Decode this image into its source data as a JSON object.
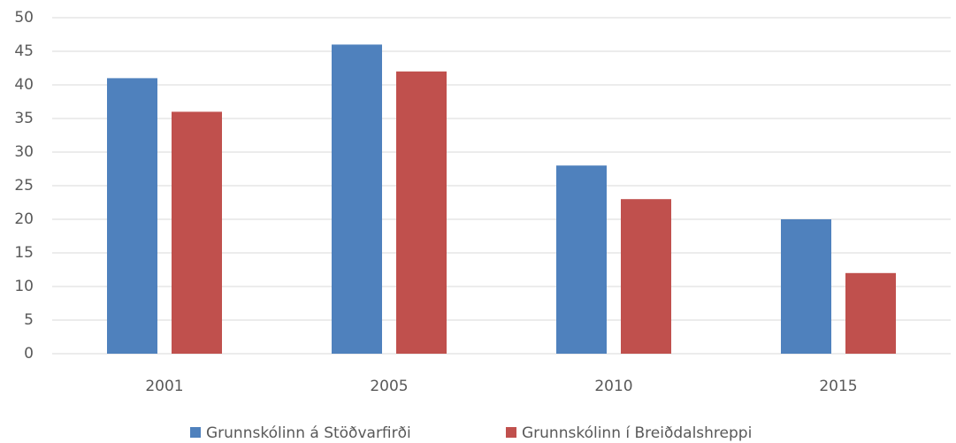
{
  "chart_data": {
    "type": "bar",
    "categories": [
      "2001",
      "2005",
      "2010",
      "2015"
    ],
    "series": [
      {
        "name": "Grunnskólinn á Stöðvarfirði",
        "color": "#4f81bd",
        "values": [
          41,
          46,
          28,
          20
        ]
      },
      {
        "name": "Grunnskólinn í Breiðdalshreppi",
        "color": "#c0504d",
        "values": [
          36,
          42,
          23,
          12
        ]
      }
    ],
    "ylim": [
      0,
      50
    ],
    "yticks": [
      0,
      5,
      10,
      15,
      20,
      25,
      30,
      35,
      40,
      45,
      50
    ],
    "grid": true,
    "legend": "bottom"
  }
}
